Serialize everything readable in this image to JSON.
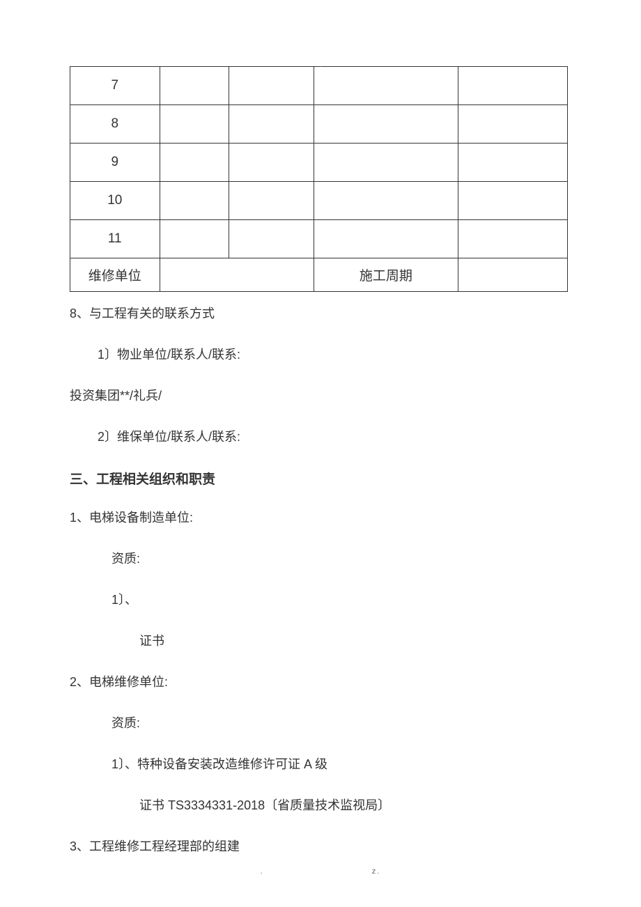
{
  "topMark": "-",
  "table": {
    "rows": [
      {
        "c1": "7",
        "c2": "",
        "c3": "",
        "c4": "",
        "c5": ""
      },
      {
        "c1": "8",
        "c2": "",
        "c3": "",
        "c4": "",
        "c5": ""
      },
      {
        "c1": "9",
        "c2": "",
        "c3": "",
        "c4": "",
        "c5": ""
      },
      {
        "c1": "10",
        "c2": "",
        "c3": "",
        "c4": "",
        "c5": ""
      },
      {
        "c1": "11",
        "c2": "",
        "c3": "",
        "c4": "",
        "c5": ""
      }
    ],
    "lastRow": {
      "c1": "维修单位",
      "c23": "",
      "c4": "施工周期",
      "c5": ""
    }
  },
  "lines": {
    "l1": "8、与工程有关的联系方式",
    "l2": "1〕物业单位/联系人/联系:",
    "l3": "投资集团**/礼兵/",
    "l4": "2〕维保单位/联系人/联系:",
    "heading": "三、工程相关组织和职责",
    "l5": "1、电梯设备制造单位:",
    "l6": "资质:",
    "l7": "1〕、",
    "l8": "证书",
    "l9": "2、电梯维修单位:",
    "l10": "资质:",
    "l11": "1〕、特种设备安装改造维修许可证 A 级",
    "l12": "证书 TS3334331-2018〔省质量技术监视局〕",
    "l13": "3、工程维修工程经理部的组建"
  },
  "footer": {
    "left": ".",
    "right": "z."
  }
}
